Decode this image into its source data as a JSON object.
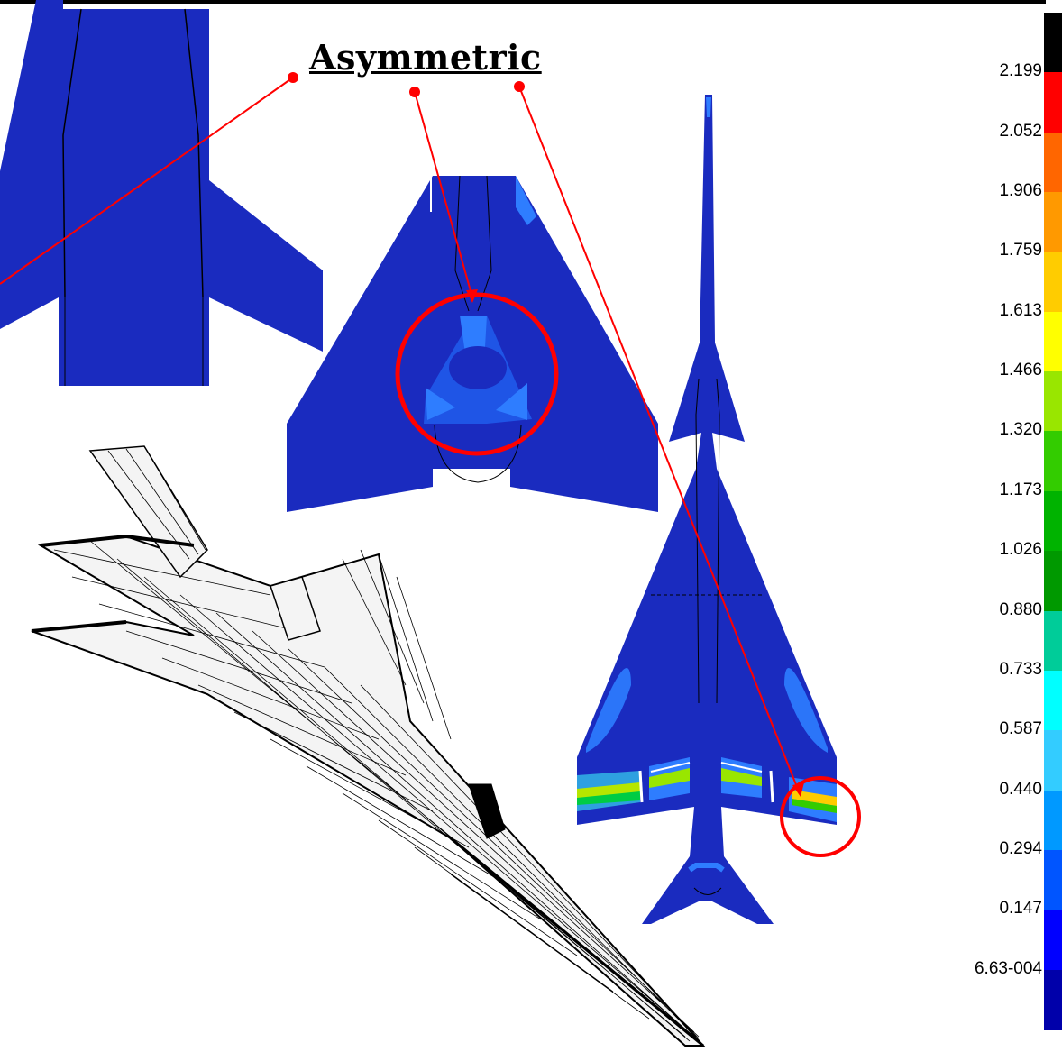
{
  "annotation": {
    "title": "Asymmetric"
  },
  "legend": {
    "ticks": [
      "2.199",
      "2.052",
      "1.906",
      "1.759",
      "1.613",
      "1.466",
      "1.320",
      "1.173",
      "1.026",
      "0.880",
      "0.733",
      "0.587",
      "0.440",
      "0.294",
      "0.147",
      "6.63-004"
    ],
    "colors": [
      "#000000",
      "#ff0000",
      "#ff6600",
      "#ff9900",
      "#ffcc00",
      "#ffff00",
      "#99e600",
      "#33cc00",
      "#00b300",
      "#009900",
      "#00cc99",
      "#00ffff",
      "#33ccff",
      "#0099ff",
      "#0055ff",
      "#0000ff",
      "#0000aa"
    ]
  },
  "colors": {
    "model_fill": "#1a2bbf",
    "model_dark": "#0a1aa8",
    "stress_light": "#2e7dff",
    "stress_mid": "#1f55e6",
    "annotation_red": "#ff0000",
    "mesh_line": "#000000"
  }
}
